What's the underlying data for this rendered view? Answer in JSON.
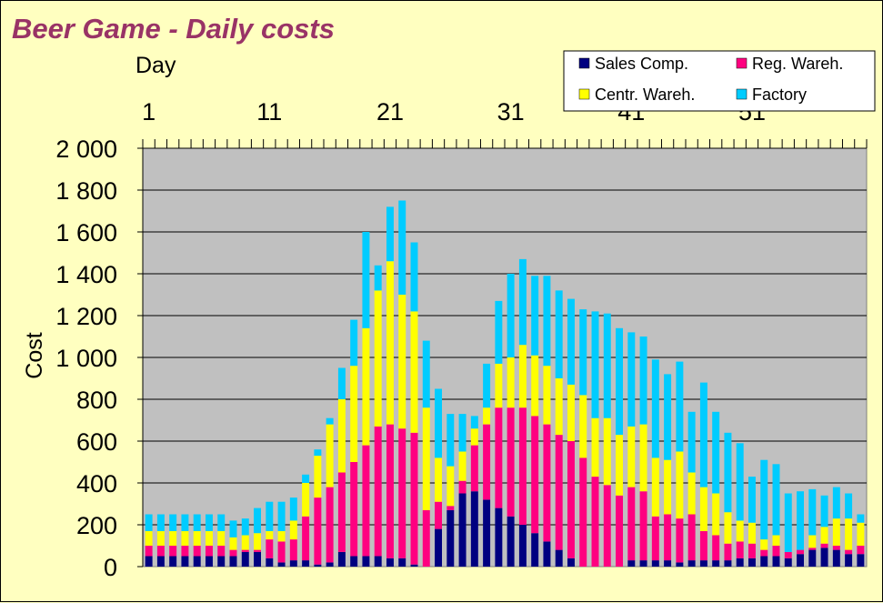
{
  "chart_data": {
    "type": "bar",
    "stacked": true,
    "title": "Beer Game - Daily costs",
    "xlabel": "Day",
    "ylabel": "Cost",
    "x_axis_position": "top",
    "x": [
      1,
      2,
      3,
      4,
      5,
      6,
      7,
      8,
      9,
      10,
      11,
      12,
      13,
      14,
      15,
      16,
      17,
      18,
      19,
      20,
      21,
      22,
      23,
      24,
      25,
      26,
      27,
      28,
      29,
      30,
      31,
      32,
      33,
      34,
      35,
      36,
      37,
      38,
      39,
      40,
      41,
      42,
      43,
      44,
      45,
      46,
      47,
      48,
      49,
      50,
      51,
      52,
      53,
      54,
      55,
      56,
      57,
      58,
      59,
      60
    ],
    "x_tick_labels": [
      "1",
      "11",
      "21",
      "31",
      "41",
      "51"
    ],
    "y_tick_labels": [
      "0",
      "200",
      "400",
      "600",
      "800",
      "1 000",
      "1 200",
      "1 400",
      "1 600",
      "1 800",
      "2 000"
    ],
    "ylim": [
      0,
      2000
    ],
    "grid": true,
    "legend_position": "top-right",
    "series": [
      {
        "name": "Sales Comp.",
        "color": "#000080",
        "values": [
          50,
          50,
          50,
          50,
          50,
          50,
          50,
          50,
          70,
          70,
          40,
          20,
          30,
          30,
          10,
          20,
          70,
          50,
          50,
          50,
          40,
          40,
          10,
          0,
          180,
          270,
          350,
          360,
          320,
          280,
          240,
          200,
          160,
          120,
          80,
          40,
          0,
          0,
          0,
          0,
          30,
          30,
          30,
          30,
          20,
          30,
          30,
          30,
          30,
          40,
          40,
          50,
          50,
          40,
          60,
          80,
          90,
          80,
          60,
          60
        ]
      },
      {
        "name": "Reg. Wareh.",
        "color": "#ff0080",
        "values": [
          50,
          50,
          50,
          50,
          50,
          50,
          50,
          30,
          10,
          10,
          90,
          100,
          100,
          210,
          320,
          360,
          380,
          450,
          530,
          620,
          640,
          620,
          630,
          270,
          130,
          20,
          60,
          220,
          360,
          480,
          520,
          560,
          560,
          560,
          550,
          560,
          520,
          430,
          390,
          340,
          350,
          330,
          210,
          220,
          210,
          220,
          140,
          120,
          80,
          80,
          70,
          30,
          50,
          30,
          20,
          10,
          20,
          20,
          20,
          40
        ]
      },
      {
        "name": "Centr. Wareh.",
        "color": "#ffff00",
        "values": [
          70,
          70,
          70,
          70,
          70,
          70,
          70,
          60,
          70,
          80,
          40,
          50,
          90,
          160,
          200,
          300,
          350,
          460,
          560,
          650,
          780,
          640,
          580,
          490,
          210,
          190,
          140,
          80,
          80,
          210,
          240,
          300,
          290,
          280,
          270,
          270,
          300,
          280,
          320,
          290,
          290,
          320,
          280,
          260,
          320,
          200,
          210,
          200,
          150,
          100,
          100,
          50,
          50,
          0,
          0,
          60,
          80,
          130,
          150,
          110
        ]
      },
      {
        "name": "Factory",
        "color": "#00ccff",
        "values": [
          80,
          80,
          80,
          80,
          80,
          80,
          80,
          80,
          80,
          120,
          140,
          140,
          110,
          40,
          30,
          30,
          150,
          220,
          460,
          120,
          260,
          450,
          330,
          320,
          330,
          250,
          180,
          60,
          210,
          300,
          400,
          410,
          380,
          430,
          420,
          410,
          410,
          510,
          500,
          510,
          450,
          420,
          470,
          410,
          430,
          290,
          500,
          390,
          380,
          370,
          220,
          380,
          340,
          280,
          280,
          220,
          150,
          150,
          120,
          40
        ]
      }
    ]
  }
}
